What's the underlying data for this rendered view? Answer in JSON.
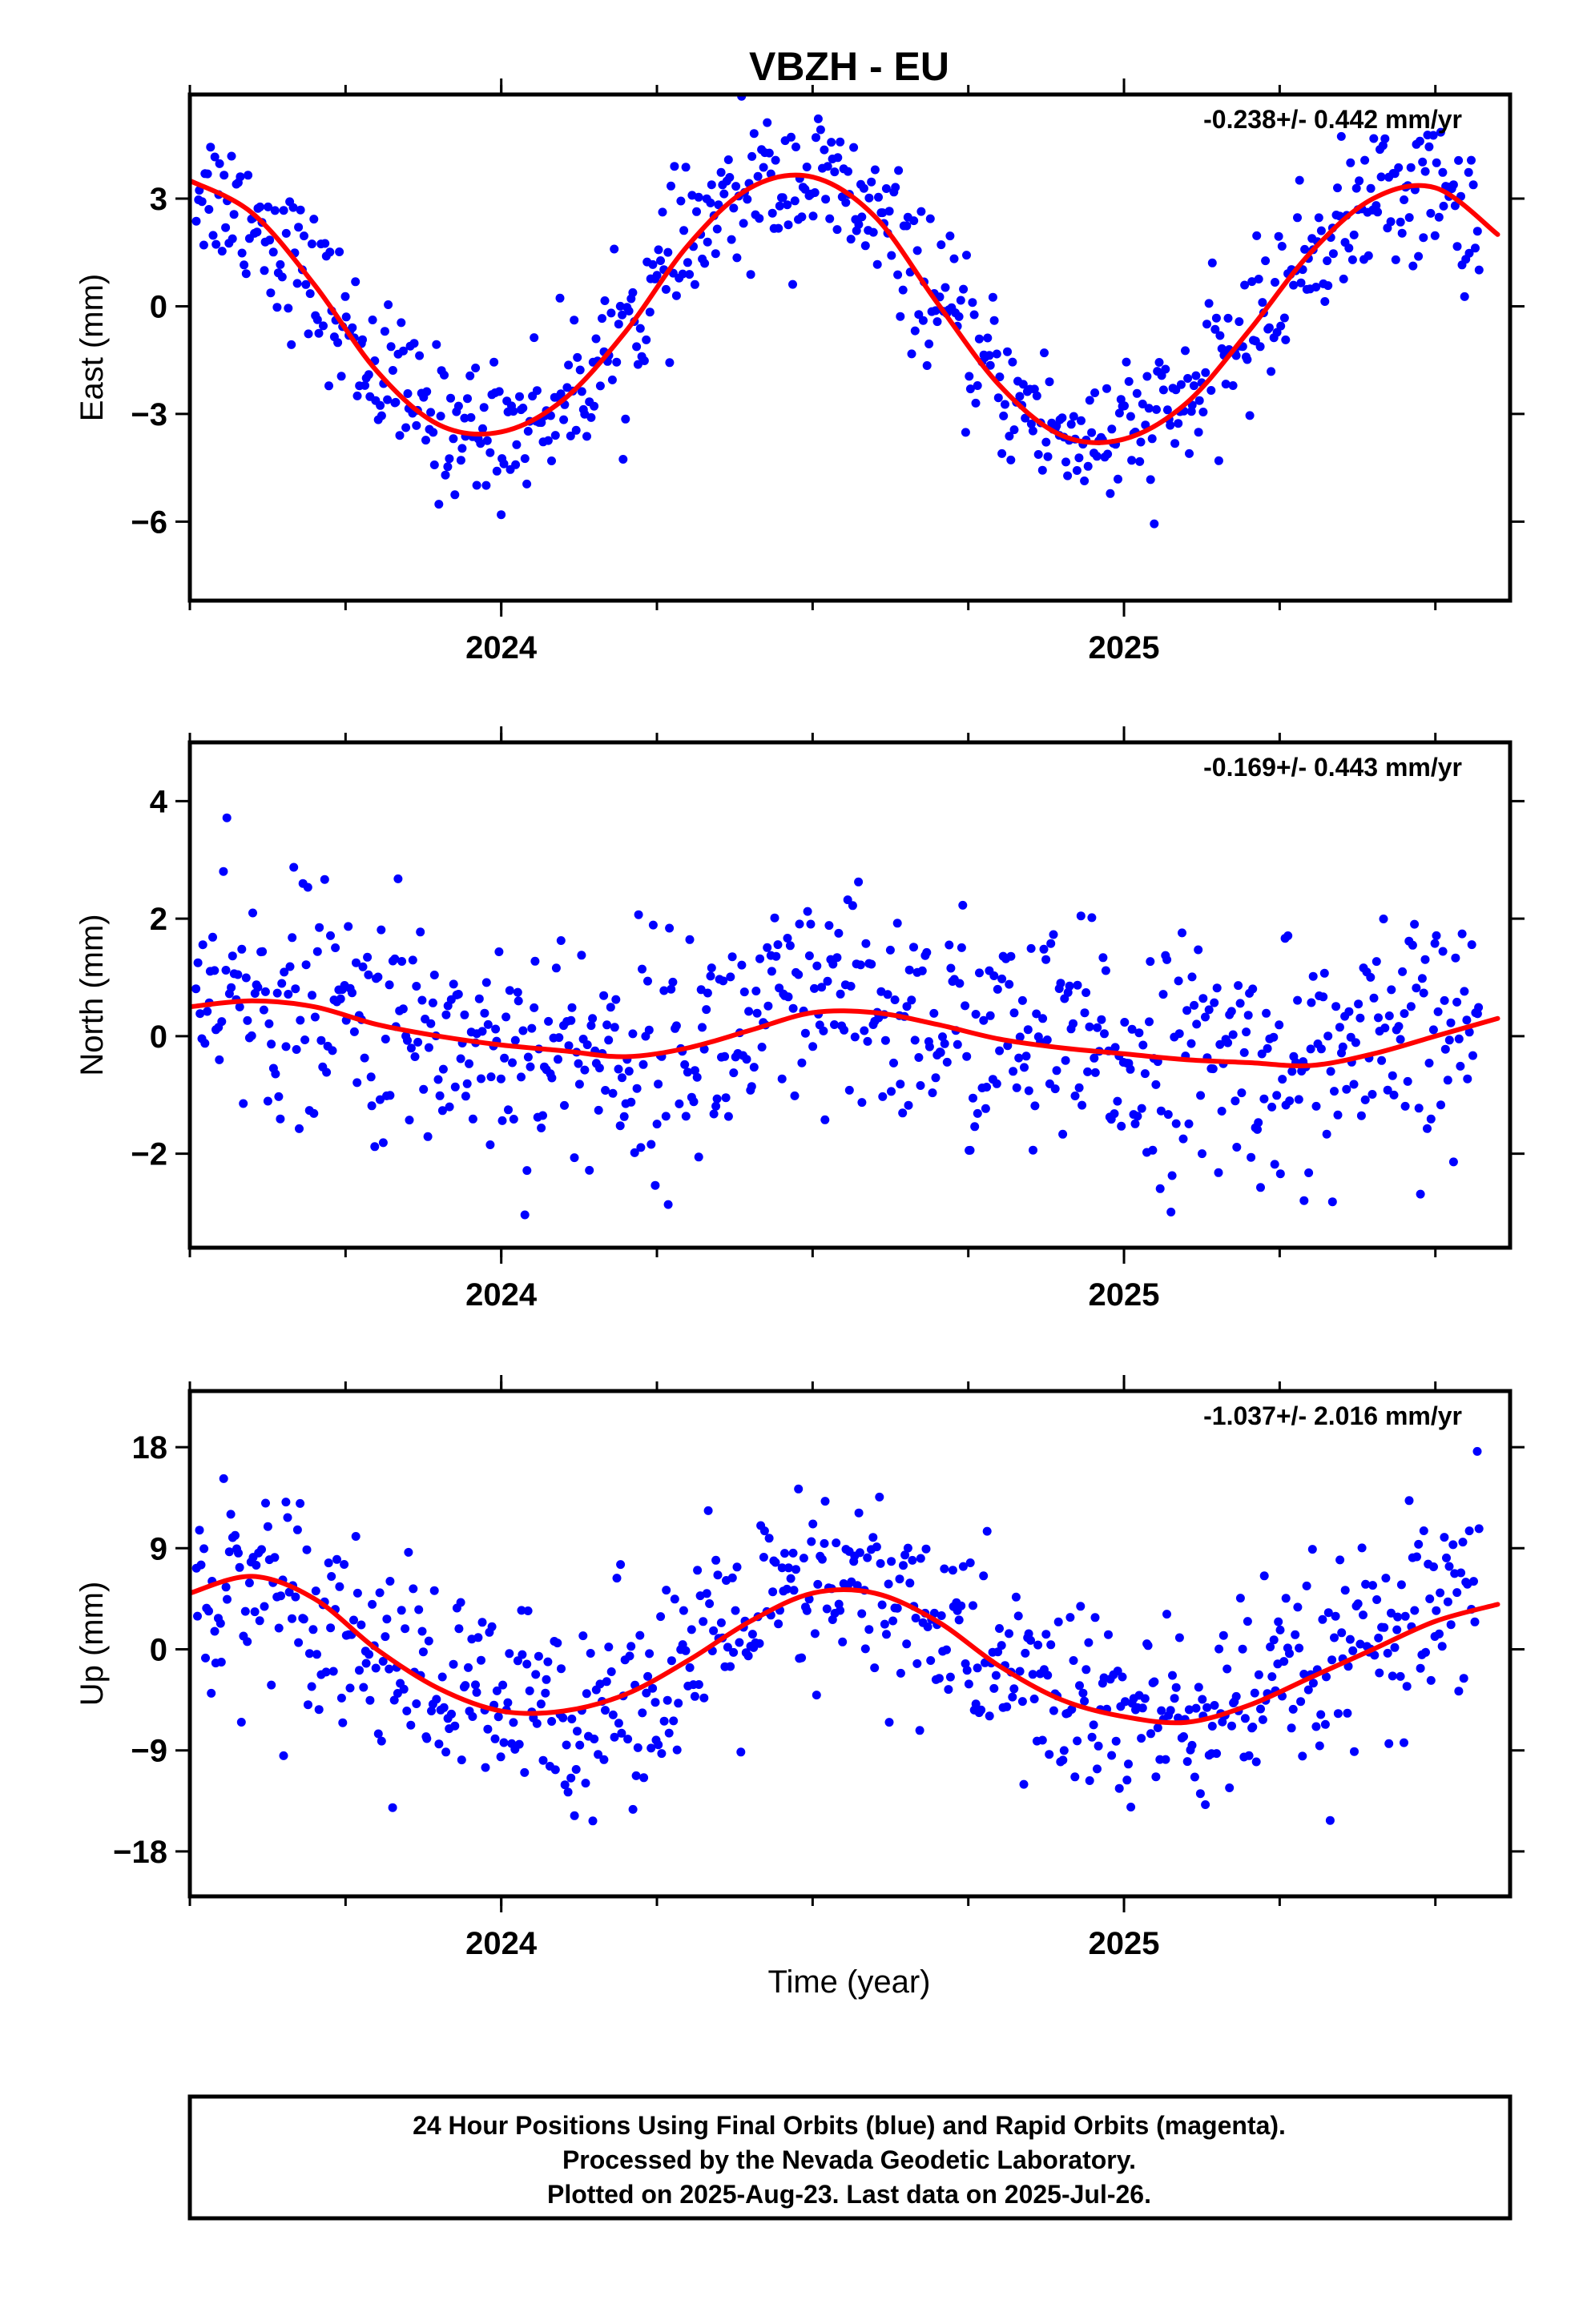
{
  "title": "VBZH - EU",
  "x_axis_label": "Time (year)",
  "footer": [
    "24 Hour Positions Using Final Orbits (blue) and Rapid Orbits (magenta).",
    "Processed by the Nevada Geodetic Laboratory.",
    "Plotted on 2025-Aug-23. Last data on 2025-Jul-26."
  ],
  "colors": {
    "points": "#0000ff",
    "fit": "#ff0000",
    "frame": "#000000"
  },
  "chart_data": [
    {
      "type": "scatter",
      "ylabel": "East (mm)",
      "rate_text": "-0.238+/- 0.442 mm/yr",
      "x_ticks": [
        2024,
        2025
      ],
      "x_tick_labels": [
        "2024",
        "2025"
      ],
      "xlim": [
        2023.5,
        2025.62
      ],
      "y_ticks": [
        3,
        0,
        -3,
        -6
      ],
      "y_tick_labels": [
        "3",
        "0",
        "−3",
        "−6"
      ],
      "ylim": [
        -8.2,
        5.9
      ],
      "fit": {
        "x": [
          2023.5,
          2023.6,
          2023.7,
          2023.8,
          2023.9,
          2024.0,
          2024.1,
          2024.2,
          2024.3,
          2024.4,
          2024.5,
          2024.6,
          2024.7,
          2024.8,
          2024.9,
          2025.0,
          2025.1,
          2025.2,
          2025.3,
          2025.4,
          2025.5,
          2025.6
        ],
        "y": [
          3.5,
          2.6,
          0.6,
          -1.8,
          -3.3,
          -3.5,
          -2.6,
          -0.7,
          1.7,
          3.3,
          3.6,
          2.5,
          0.1,
          -2.2,
          -3.6,
          -3.7,
          -2.7,
          -0.7,
          1.5,
          3.0,
          3.3,
          2.0
        ]
      },
      "scatter": {
        "n": 700,
        "x_start": 2023.51,
        "x_end": 2025.57,
        "noise": 1.0
      }
    },
    {
      "type": "scatter",
      "ylabel": "North (mm)",
      "rate_text": "-0.169+/- 0.443 mm/yr",
      "x_ticks": [
        2024,
        2025
      ],
      "x_tick_labels": [
        "2024",
        "2025"
      ],
      "xlim": [
        2023.5,
        2025.62
      ],
      "y_ticks": [
        4,
        2,
        0,
        -2
      ],
      "y_tick_labels": [
        "4",
        "2",
        "0",
        "−2"
      ],
      "ylim": [
        -3.6,
        5.0
      ],
      "fit": {
        "x": [
          2023.5,
          2023.6,
          2023.7,
          2023.8,
          2023.9,
          2024.0,
          2024.1,
          2024.2,
          2024.3,
          2024.4,
          2024.5,
          2024.6,
          2024.7,
          2024.8,
          2024.9,
          2025.0,
          2025.1,
          2025.2,
          2025.3,
          2025.4,
          2025.5,
          2025.6
        ],
        "y": [
          0.5,
          0.6,
          0.5,
          0.2,
          0.0,
          -0.15,
          -0.25,
          -0.35,
          -0.2,
          0.1,
          0.4,
          0.4,
          0.2,
          -0.05,
          -0.2,
          -0.3,
          -0.4,
          -0.45,
          -0.5,
          -0.3,
          0.0,
          0.3
        ]
      },
      "scatter": {
        "n": 700,
        "x_start": 2023.51,
        "x_end": 2025.57,
        "noise": 1.0
      }
    },
    {
      "type": "scatter",
      "ylabel": "Up (mm)",
      "rate_text": "-1.037+/- 2.016 mm/yr",
      "x_ticks": [
        2024,
        2025
      ],
      "x_tick_labels": [
        "2024",
        "2025"
      ],
      "xlim": [
        2023.5,
        2025.62
      ],
      "y_ticks": [
        18,
        9,
        0,
        -9,
        -18
      ],
      "y_tick_labels": [
        "18",
        "9",
        "0",
        "−9",
        "−18"
      ],
      "ylim": [
        -22,
        23
      ],
      "fit": {
        "x": [
          2023.5,
          2023.6,
          2023.7,
          2023.8,
          2023.9,
          2024.0,
          2024.1,
          2024.2,
          2024.3,
          2024.4,
          2024.5,
          2024.6,
          2024.7,
          2024.8,
          2024.9,
          2025.0,
          2025.1,
          2025.2,
          2025.3,
          2025.4,
          2025.5,
          2025.6
        ],
        "y": [
          5,
          6.5,
          4.5,
          0,
          -3.5,
          -5.5,
          -5.5,
          -4,
          -1,
          2.5,
          5,
          5,
          2.5,
          -1.5,
          -4.5,
          -6,
          -6.5,
          -5,
          -2.5,
          0,
          2.5,
          4
        ]
      },
      "scatter": {
        "n": 700,
        "x_start": 2023.51,
        "x_end": 2025.57,
        "noise": 4.5
      }
    }
  ]
}
